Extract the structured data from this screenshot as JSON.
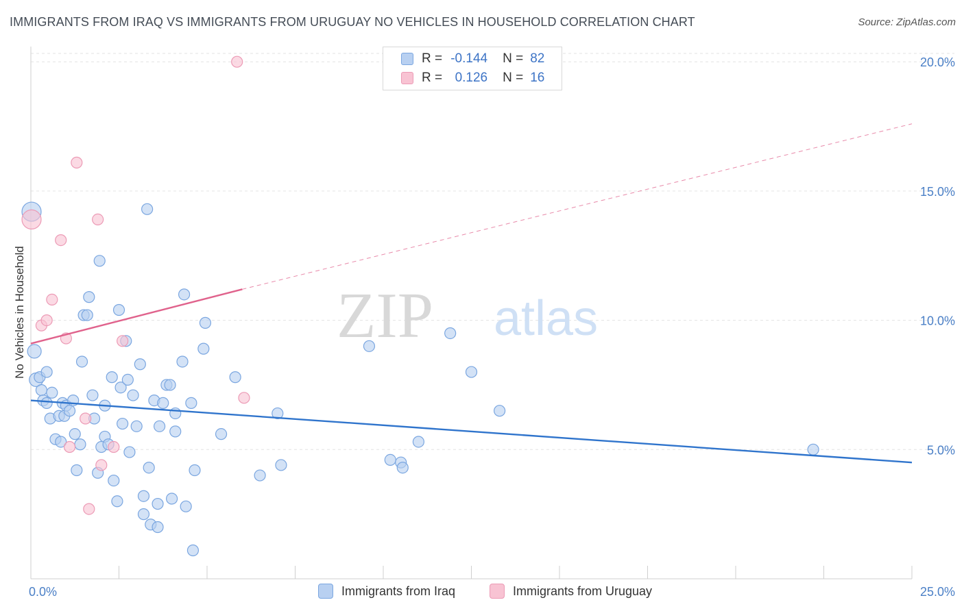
{
  "header": {
    "title": "IMMIGRANTS FROM IRAQ VS IMMIGRANTS FROM URUGUAY NO VEHICLES IN HOUSEHOLD CORRELATION CHART",
    "source": "Source: ZipAtlas.com"
  },
  "watermark": {
    "zip": "ZIP",
    "atlas": "atlas"
  },
  "legend": {
    "rows": [
      {
        "r_label": "R =",
        "r_value": "-0.144",
        "n_label": "N =",
        "n_value": "82"
      },
      {
        "r_label": "R =",
        "r_value": "0.126",
        "n_label": "N =",
        "n_value": "16"
      }
    ]
  },
  "colors": {
    "iraq_fill": "#b8d0f1",
    "iraq_stroke": "#7aa6e0",
    "iraq_line": "#2f74cc",
    "uruguay_fill": "#f8c3d3",
    "uruguay_stroke": "#ec9ab5",
    "uruguay_line": "#e0628c",
    "tick_text": "#4a7fc6",
    "grid": "#e3e3e3"
  },
  "chart_data": {
    "type": "scatter",
    "title": "IMMIGRANTS FROM IRAQ VS IMMIGRANTS FROM URUGUAY NO VEHICLES IN HOUSEHOLD CORRELATION CHART",
    "xlabel": "",
    "ylabel": "No Vehicles in Household",
    "xlim": [
      0,
      25
    ],
    "ylim": [
      0,
      20.8
    ],
    "x_tick_labels": [
      "0.0%",
      "25.0%"
    ],
    "y_ticks": [
      5,
      10,
      15,
      20
    ],
    "y_tick_labels": [
      "5.0%",
      "10.0%",
      "15.0%",
      "20.0%"
    ],
    "grid": true,
    "legend_position": "bottom",
    "series": [
      {
        "name": "Immigrants from Iraq",
        "r": -0.144,
        "n": 82,
        "trend": {
          "x": [
            0,
            25
          ],
          "y": [
            6.9,
            4.5
          ],
          "dashed_beyond": null
        },
        "points": [
          [
            0.02,
            14.2
          ],
          [
            0.1,
            8.8
          ],
          [
            0.15,
            7.7
          ],
          [
            0.25,
            7.8
          ],
          [
            0.3,
            7.3
          ],
          [
            0.35,
            6.9
          ],
          [
            0.45,
            8.0
          ],
          [
            0.45,
            6.8
          ],
          [
            0.55,
            6.2
          ],
          [
            0.6,
            7.2
          ],
          [
            0.7,
            5.4
          ],
          [
            0.8,
            6.3
          ],
          [
            0.85,
            5.3
          ],
          [
            0.9,
            6.8
          ],
          [
            0.95,
            6.3
          ],
          [
            1.0,
            6.7
          ],
          [
            1.1,
            6.5
          ],
          [
            1.2,
            6.9
          ],
          [
            1.25,
            5.6
          ],
          [
            1.3,
            4.2
          ],
          [
            1.4,
            5.2
          ],
          [
            1.45,
            8.4
          ],
          [
            1.5,
            10.2
          ],
          [
            1.6,
            10.2
          ],
          [
            1.65,
            10.9
          ],
          [
            1.75,
            7.1
          ],
          [
            1.8,
            6.2
          ],
          [
            1.9,
            4.1
          ],
          [
            1.95,
            12.3
          ],
          [
            2.0,
            5.1
          ],
          [
            2.1,
            5.5
          ],
          [
            2.1,
            6.7
          ],
          [
            2.2,
            5.2
          ],
          [
            2.3,
            7.8
          ],
          [
            2.35,
            3.8
          ],
          [
            2.45,
            3.0
          ],
          [
            2.5,
            10.4
          ],
          [
            2.55,
            7.4
          ],
          [
            2.6,
            6.0
          ],
          [
            2.7,
            9.2
          ],
          [
            2.75,
            7.7
          ],
          [
            2.8,
            4.9
          ],
          [
            2.9,
            7.1
          ],
          [
            3.0,
            5.9
          ],
          [
            3.1,
            8.3
          ],
          [
            3.2,
            3.2
          ],
          [
            3.2,
            2.5
          ],
          [
            3.3,
            14.3
          ],
          [
            3.35,
            4.3
          ],
          [
            3.4,
            2.1
          ],
          [
            3.5,
            6.9
          ],
          [
            3.6,
            2.0
          ],
          [
            3.6,
            2.9
          ],
          [
            3.65,
            5.9
          ],
          [
            3.75,
            6.8
          ],
          [
            3.85,
            7.5
          ],
          [
            3.95,
            7.5
          ],
          [
            4.0,
            3.1
          ],
          [
            4.1,
            6.4
          ],
          [
            4.1,
            5.7
          ],
          [
            4.3,
            8.4
          ],
          [
            4.35,
            11.0
          ],
          [
            4.4,
            2.8
          ],
          [
            4.55,
            6.8
          ],
          [
            4.6,
            1.1
          ],
          [
            4.65,
            4.2
          ],
          [
            4.9,
            8.9
          ],
          [
            4.95,
            9.9
          ],
          [
            5.4,
            5.6
          ],
          [
            5.8,
            7.8
          ],
          [
            6.5,
            4.0
          ],
          [
            7.0,
            6.4
          ],
          [
            7.1,
            4.4
          ],
          [
            9.6,
            9.0
          ],
          [
            10.2,
            4.6
          ],
          [
            10.5,
            4.5
          ],
          [
            10.55,
            4.3
          ],
          [
            11.0,
            5.3
          ],
          [
            11.9,
            9.5
          ],
          [
            12.5,
            8.0
          ],
          [
            13.3,
            6.5
          ],
          [
            22.2,
            5.0
          ]
        ]
      },
      {
        "name": "Immigrants from Uruguay",
        "r": 0.126,
        "n": 16,
        "trend": {
          "x": [
            0,
            6.0
          ],
          "y": [
            9.1,
            11.2
          ],
          "dashed_to": [
            25,
            17.6
          ]
        },
        "points": [
          [
            0.02,
            13.9
          ],
          [
            0.3,
            9.8
          ],
          [
            0.45,
            10.0
          ],
          [
            0.6,
            10.8
          ],
          [
            0.85,
            13.1
          ],
          [
            1.0,
            9.3
          ],
          [
            1.1,
            5.1
          ],
          [
            1.3,
            16.1
          ],
          [
            1.55,
            6.2
          ],
          [
            1.65,
            2.7
          ],
          [
            1.9,
            13.9
          ],
          [
            2.0,
            4.4
          ],
          [
            2.35,
            5.1
          ],
          [
            2.6,
            9.2
          ],
          [
            6.05,
            7.0
          ],
          [
            5.85,
            20.0
          ]
        ]
      }
    ]
  },
  "bottom_legend": {
    "items": [
      {
        "label": "Immigrants from Iraq"
      },
      {
        "label": "Immigrants from Uruguay"
      }
    ]
  }
}
